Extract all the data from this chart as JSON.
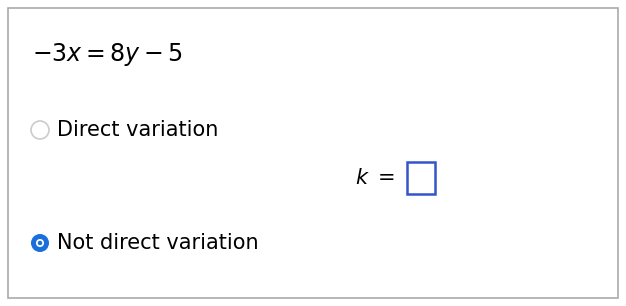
{
  "background_color": "#ffffff",
  "border_color": "#aaaaaa",
  "equation": "$-3x = 8y - 5$",
  "option1_text": "Direct variation",
  "option1_radio_color": "#cccccc",
  "k_label": "$k\\ =$",
  "k_box_color": "#3355cc",
  "option2_text": "Not direct variation",
  "option2_radio_color": "#1a6fdb",
  "option2_text_color": "#222222",
  "fig_width": 6.26,
  "fig_height": 3.06,
  "dpi": 100
}
